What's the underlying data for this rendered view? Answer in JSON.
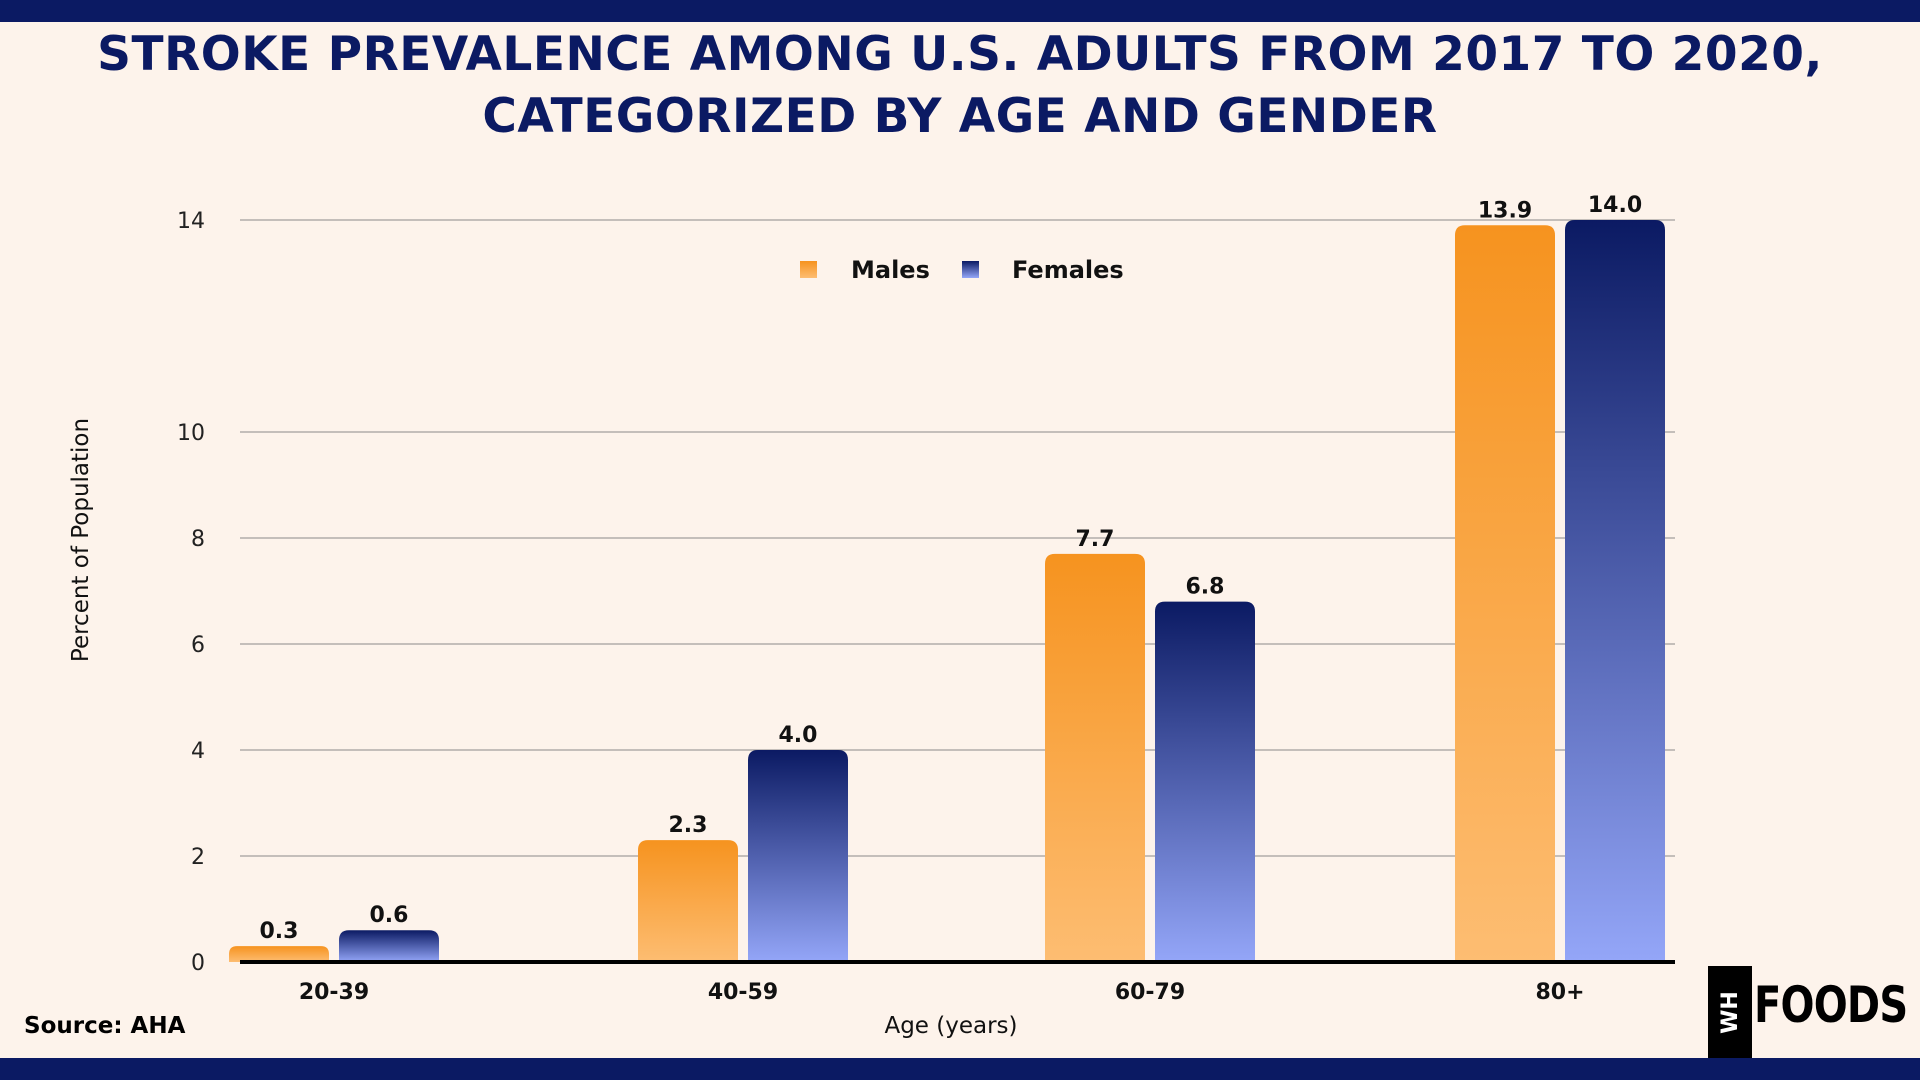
{
  "title_lines": [
    "STROKE PREVALENCE AMONG U.S. ADULTS FROM 2017 TO 2020,",
    "CATEGORIZED BY AGE AND GENDER"
  ],
  "source": "Source: AHA",
  "logo": {
    "badge": "WH",
    "word": "FOODS"
  },
  "colors": {
    "band": "#0b1a63",
    "background": "#fdf3eb",
    "males_top": "#f6931f",
    "males_bottom": "#fdbd72",
    "females_top": "#0b1a63",
    "females_bottom": "#94a6f8"
  },
  "chart_data": {
    "type": "bar",
    "categories": [
      "20-39",
      "40-59",
      "60-79",
      "80+"
    ],
    "series": [
      {
        "name": "Males",
        "values": [
          0.3,
          2.3,
          7.7,
          13.9
        ],
        "labels": [
          "0.3",
          "2.3",
          "7.7",
          "13.9"
        ]
      },
      {
        "name": "Females",
        "values": [
          0.6,
          4.0,
          6.8,
          14.0
        ],
        "labels": [
          "0.6",
          "4.0",
          "6.8",
          "14.0"
        ]
      }
    ],
    "xlabel": "Age (years)",
    "ylabel": "Percent of Population",
    "ylim": [
      0,
      14
    ],
    "yticks": [
      0,
      2,
      4,
      6,
      8,
      10,
      14
    ],
    "grid": true,
    "legend": "top-center"
  }
}
